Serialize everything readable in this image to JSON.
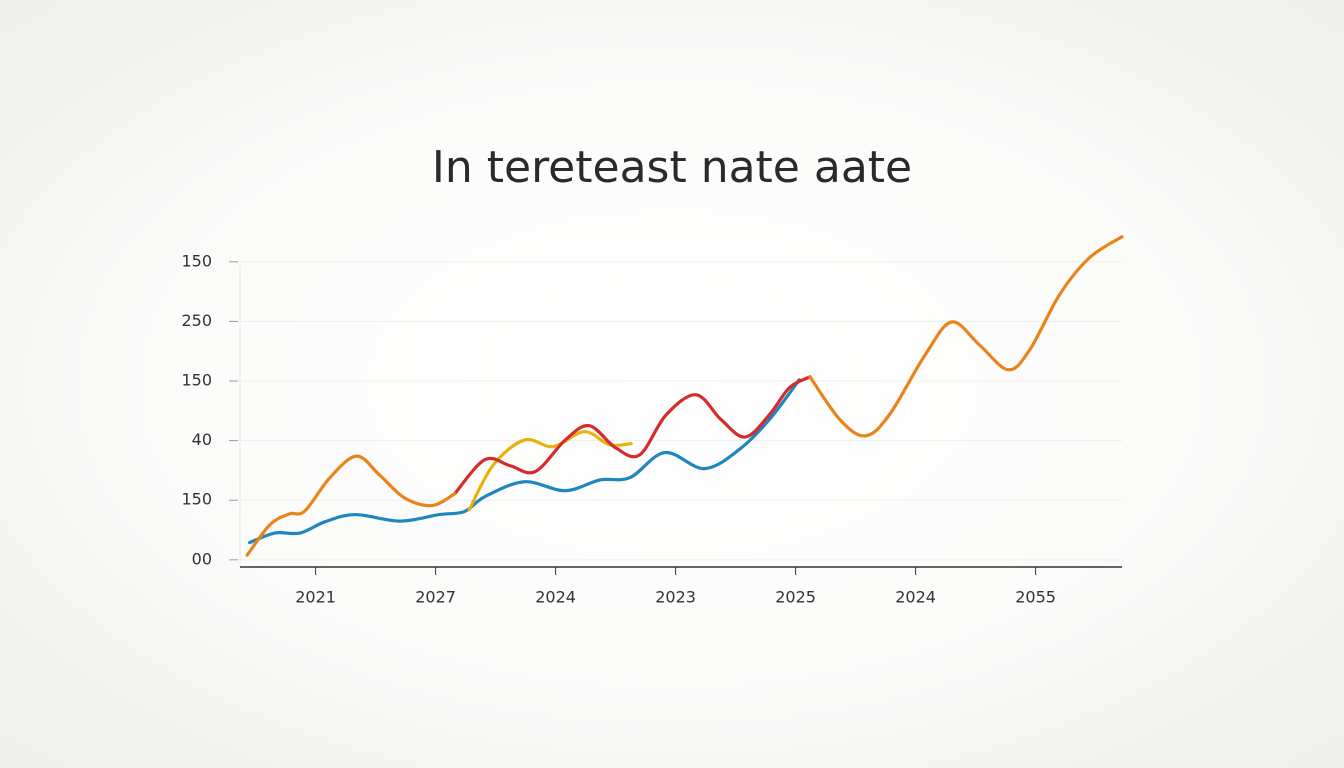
{
  "chart_data": {
    "type": "line",
    "title": "In tereteast nate aate",
    "xlim": [
      0.37,
      7.72
    ],
    "ylim": [
      -0.12,
      5.5
    ],
    "xticks": [
      {
        "value": 1,
        "label": "2021"
      },
      {
        "value": 2,
        "label": "2027"
      },
      {
        "value": 3,
        "label": "2024"
      },
      {
        "value": 4,
        "label": "2023"
      },
      {
        "value": 5,
        "label": "2025"
      },
      {
        "value": 6,
        "label": "2024"
      },
      {
        "value": 7,
        "label": "2055"
      }
    ],
    "yticks": [
      {
        "value": 0,
        "label": "00"
      },
      {
        "value": 1,
        "label": "150"
      },
      {
        "value": 2,
        "label": "40"
      },
      {
        "value": 3,
        "label": "150"
      },
      {
        "value": 4,
        "label": "250"
      },
      {
        "value": 5,
        "label": "150"
      }
    ],
    "grid": true,
    "series": [
      {
        "color": "#1f86c0",
        "x": [
          0.45,
          0.66,
          0.87,
          1.08,
          1.33,
          1.7,
          2.03,
          2.24,
          2.41,
          2.74,
          3.08,
          3.37,
          3.62,
          3.91,
          4.24,
          4.53,
          4.78,
          5.03
        ],
        "values": [
          0.29,
          0.45,
          0.45,
          0.64,
          0.76,
          0.65,
          0.76,
          0.81,
          1.06,
          1.31,
          1.16,
          1.34,
          1.38,
          1.8,
          1.53,
          1.85,
          2.35,
          3.02
        ]
      },
      {
        "color": "#e8b20c",
        "x": [
          2.28,
          2.48,
          2.74,
          2.98,
          3.24,
          3.45,
          3.63
        ],
        "values": [
          0.84,
          1.59,
          2.01,
          1.9,
          2.15,
          1.93,
          1.95
        ]
      },
      {
        "color": "#d62b2b",
        "x": [
          2.16,
          2.41,
          2.62,
          2.83,
          3.08,
          3.28,
          3.5,
          3.7,
          3.92,
          4.17,
          4.38,
          4.58,
          4.78,
          4.95,
          5.12
        ],
        "values": [
          1.11,
          1.68,
          1.58,
          1.48,
          2.01,
          2.25,
          1.88,
          1.76,
          2.43,
          2.77,
          2.35,
          2.06,
          2.43,
          2.89,
          3.07
        ]
      },
      {
        "color": "#e8841a",
        "x": [
          0.43,
          0.62,
          0.78,
          0.91,
          1.12,
          1.34,
          1.53,
          1.74,
          1.97,
          2.16,
          null,
          5.12,
          5.37,
          5.58,
          5.78,
          6.08,
          6.3,
          6.53,
          6.77,
          6.95,
          7.2,
          7.45,
          7.72
        ],
        "values": [
          0.08,
          0.59,
          0.77,
          0.82,
          1.38,
          1.74,
          1.43,
          1.04,
          0.91,
          1.11,
          null,
          3.07,
          2.35,
          2.08,
          2.43,
          3.44,
          3.99,
          3.61,
          3.19,
          3.52,
          4.45,
          5.07,
          5.42
        ]
      }
    ]
  }
}
